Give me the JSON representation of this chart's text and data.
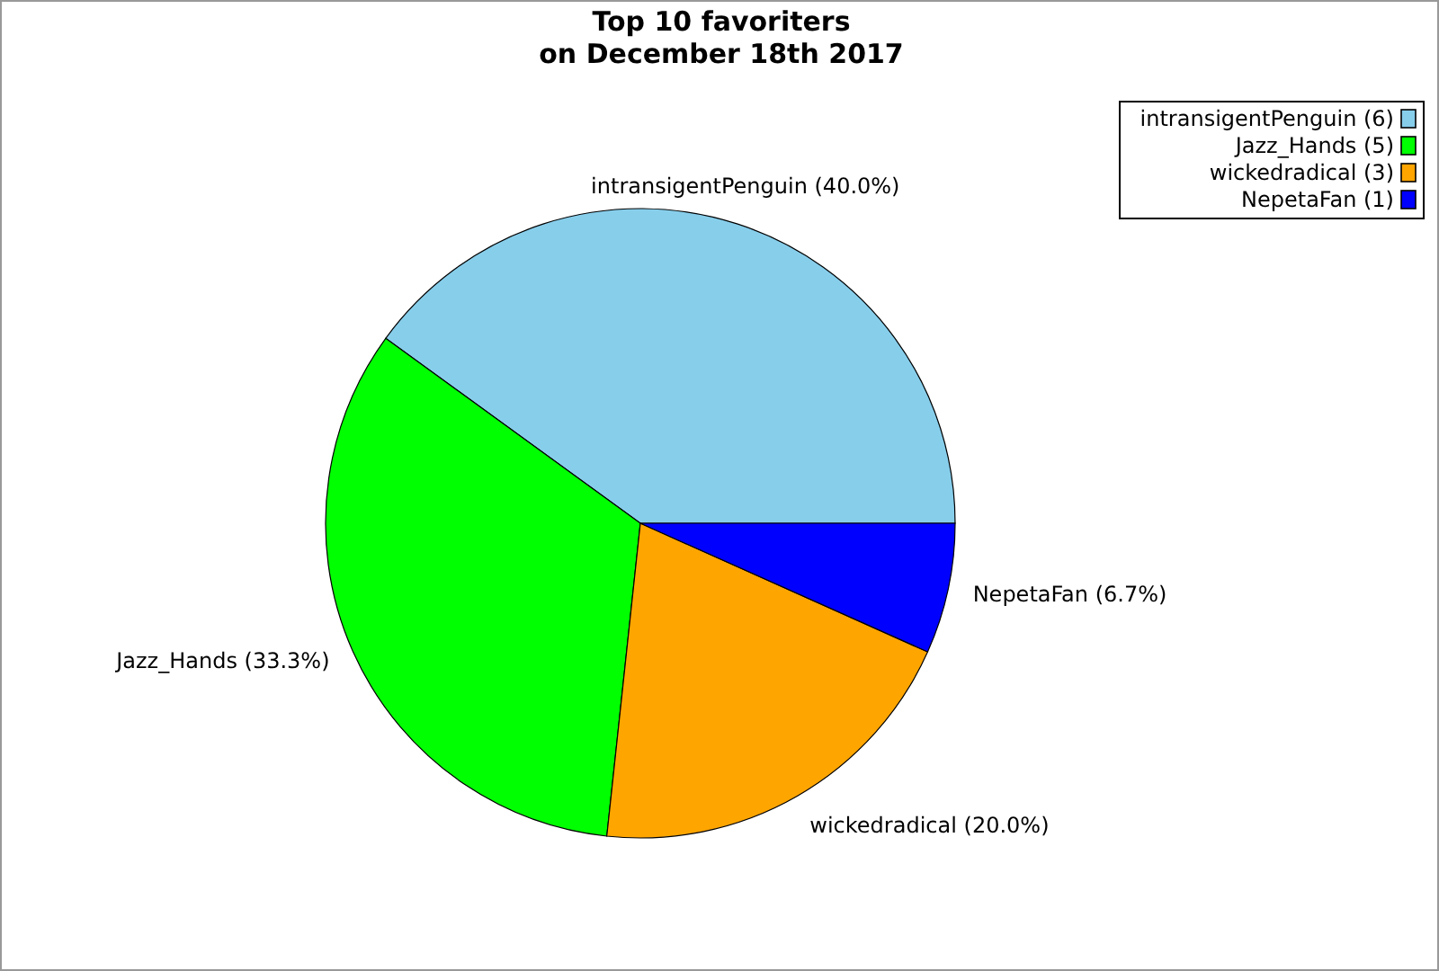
{
  "chart_data": {
    "type": "pie",
    "title": "Top 10 favoriters\non December 18th 2017",
    "categories": [
      "intransigentPenguin (6)",
      "Jazz_Hands (5)",
      "wickedradical (3)",
      "NepetaFan (1)"
    ],
    "values": [
      40.0,
      33.3,
      20.0,
      6.7
    ],
    "value_labels": [
      "intransigentPenguin (40.0%)",
      "Jazz_Hands (33.3%)",
      "wickedradical (20.0%)",
      "NepetaFan (6.7%)"
    ],
    "colors": [
      "#87ceeb",
      "#00ff00",
      "#ffa500",
      "#0000ff"
    ],
    "legend": "top right"
  }
}
